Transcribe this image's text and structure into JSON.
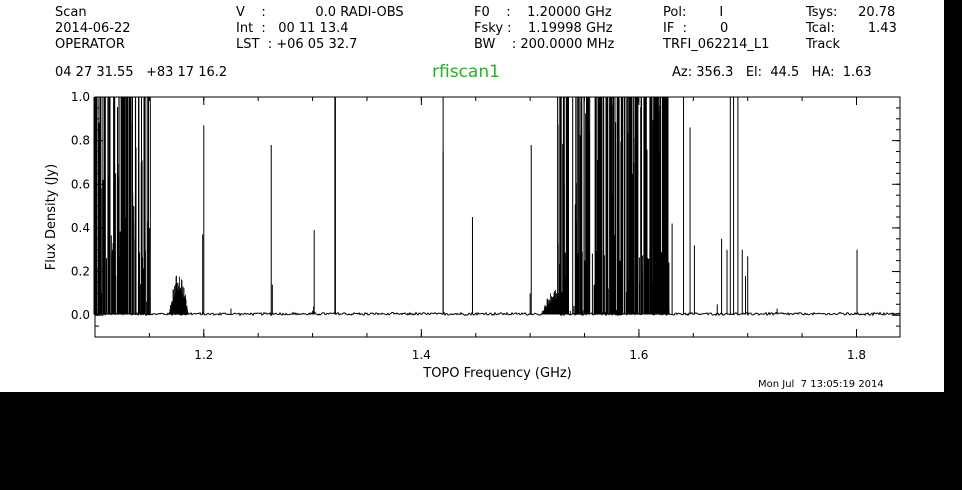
{
  "header": {
    "col1": [
      "Scan",
      "2014-06-22",
      "OPERATOR"
    ],
    "col2": [
      "V    :            0.0 RADI-OBS",
      "Int  :   00 11 13.4",
      "LST  : +06 05 32.7"
    ],
    "col3": [
      "F0    :    1.20000 GHz",
      "Fsky :    1.19998 GHz",
      "BW    : 200.0000 MHz"
    ],
    "col4": [
      "Pol:        I",
      "IF  :        0",
      "TRFI_062214_L1"
    ],
    "col5": [
      "Tsys:     20.78",
      "Tcal:        1.43",
      "Track"
    ],
    "coords": "04 27 31.55   +83 17 16.2",
    "pointing": "Az: 356.3   El:  44.5   HA:  1.63"
  },
  "timestamp": "Mon Jul  7 13:05:19 2014",
  "colors": {
    "background": "#000000",
    "panel": "#ffffff",
    "trace": "#000000",
    "title": "#22b422"
  },
  "chart_data": {
    "type": "line",
    "title": "rfiscan1",
    "xlabel": "TOPO Frequency (GHz)",
    "ylabel": "Flux Density (Jy)",
    "xlim": [
      1.1,
      1.84
    ],
    "ylim": [
      -0.1,
      1.0
    ],
    "xticks": [
      1.2,
      1.4,
      1.6,
      1.8
    ],
    "xtick_labels": [
      "1.2",
      "1.4",
      "1.6",
      "1.8"
    ],
    "yticks": [
      0.0,
      0.2,
      0.4,
      0.6,
      0.8,
      1.0
    ],
    "ytick_labels": [
      "0.0",
      "0.2",
      "0.4",
      "0.6",
      "0.8",
      "1.0"
    ],
    "baseline": 0.003,
    "spikes": [
      {
        "x": 1.1015,
        "y": 1.0
      },
      {
        "x": 1.1045,
        "y": 1.0
      },
      {
        "x": 1.1075,
        "y": 0.62
      },
      {
        "x": 1.1095,
        "y": 1.0
      },
      {
        "x": 1.113,
        "y": 0.45
      },
      {
        "x": 1.116,
        "y": 0.3
      },
      {
        "x": 1.119,
        "y": 0.65
      },
      {
        "x": 1.122,
        "y": 1.0
      },
      {
        "x": 1.1245,
        "y": 1.0
      },
      {
        "x": 1.127,
        "y": 0.75
      },
      {
        "x": 1.1295,
        "y": 1.0
      },
      {
        "x": 1.132,
        "y": 1.0
      },
      {
        "x": 1.1345,
        "y": 0.55
      },
      {
        "x": 1.137,
        "y": 0.35
      },
      {
        "x": 1.14,
        "y": 1.0
      },
      {
        "x": 1.1425,
        "y": 0.7
      },
      {
        "x": 1.1455,
        "y": 1.0
      },
      {
        "x": 1.148,
        "y": 1.0
      },
      {
        "x": 1.15,
        "y": 0.4
      },
      {
        "x": 1.199,
        "y": 0.37
      },
      {
        "x": 1.2,
        "y": 0.87
      },
      {
        "x": 1.225,
        "y": 0.03
      },
      {
        "x": 1.262,
        "y": 0.78
      },
      {
        "x": 1.263,
        "y": 0.14
      },
      {
        "x": 1.3,
        "y": 0.02
      },
      {
        "x": 1.301,
        "y": 0.04
      },
      {
        "x": 1.3015,
        "y": 0.39
      },
      {
        "x": 1.3205,
        "y": 1.0
      },
      {
        "x": 1.321,
        "y": 1.0
      },
      {
        "x": 1.42,
        "y": 0.75
      },
      {
        "x": 1.42,
        "y": 1.0
      },
      {
        "x": 1.447,
        "y": 0.45
      },
      {
        "x": 1.5,
        "y": 0.1
      },
      {
        "x": 1.501,
        "y": 0.78
      },
      {
        "x": 1.6305,
        "y": 0.42
      },
      {
        "x": 1.641,
        "y": 1.0
      },
      {
        "x": 1.647,
        "y": 0.86
      },
      {
        "x": 1.651,
        "y": 0.32
      },
      {
        "x": 1.672,
        "y": 0.05
      },
      {
        "x": 1.676,
        "y": 0.35
      },
      {
        "x": 1.681,
        "y": 0.3
      },
      {
        "x": 1.684,
        "y": 1.0
      },
      {
        "x": 1.687,
        "y": 1.0
      },
      {
        "x": 1.691,
        "y": 1.0
      },
      {
        "x": 1.695,
        "y": 0.3
      },
      {
        "x": 1.698,
        "y": 0.18
      },
      {
        "x": 1.7,
        "y": 0.27
      },
      {
        "x": 1.727,
        "y": 0.03
      },
      {
        "x": 1.8005,
        "y": 0.3
      }
    ],
    "bumps": [
      {
        "x0": 1.168,
        "x1": 1.186,
        "peak": 0.2
      },
      {
        "x0": 1.51,
        "x1": 1.535,
        "peak": 0.12
      }
    ],
    "dense_bands": [
      {
        "x0": 1.099,
        "x1": 1.152,
        "density": 110
      },
      {
        "x0": 1.525,
        "x1": 1.6,
        "density": 180
      },
      {
        "x0": 1.6,
        "x1": 1.618,
        "density": 50
      },
      {
        "x0": 1.618,
        "x1": 1.628,
        "density": 40
      }
    ]
  }
}
